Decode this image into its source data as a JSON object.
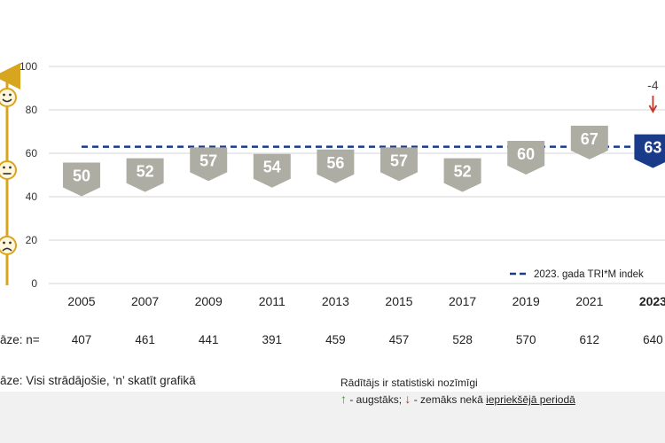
{
  "chart_data": {
    "type": "bar",
    "categories": [
      "2005",
      "2007",
      "2009",
      "2011",
      "2013",
      "2015",
      "2017",
      "2019",
      "2021",
      "2023"
    ],
    "values": [
      50,
      52,
      57,
      54,
      56,
      57,
      52,
      60,
      67,
      63
    ],
    "sample_sizes": [
      "407",
      "461",
      "441",
      "391",
      "459",
      "457",
      "528",
      "570",
      "612",
      "640"
    ],
    "sample_label": "āze: n=",
    "ylim": [
      0,
      100
    ],
    "yticks": [
      "0",
      "20",
      "40",
      "60",
      "80",
      "100"
    ],
    "reference_line": {
      "value": 63,
      "label": "2023. gada TRI*M indek"
    },
    "annotation": {
      "category": "2023",
      "text": "-4",
      "direction": "down"
    },
    "grid": true,
    "colors": {
      "bar": "#adada3",
      "highlight": "#1a3a8a",
      "reference": "#1a3a8a",
      "axis_accent": "#d8a51f",
      "grid": "#d5d5d5",
      "down_arrow": "#c0392b",
      "up_arrow": "#2e9d3a"
    },
    "icons": [
      "smiley-happy-icon",
      "smiley-neutral-icon",
      "smiley-sad-icon"
    ]
  },
  "footer": {
    "base_text": "āze: Visi strādājošie, ‘n’ skatīt grafikā",
    "significance_title": "Rādītājs ir statistiski nozīmīgi",
    "up_arrow": "↑",
    "higher_text": " -  augstāks;",
    "down_arrow": "↓",
    "lower_text": " -  zemāks nekā ",
    "lower_link": "iepriekšējā periodā"
  }
}
